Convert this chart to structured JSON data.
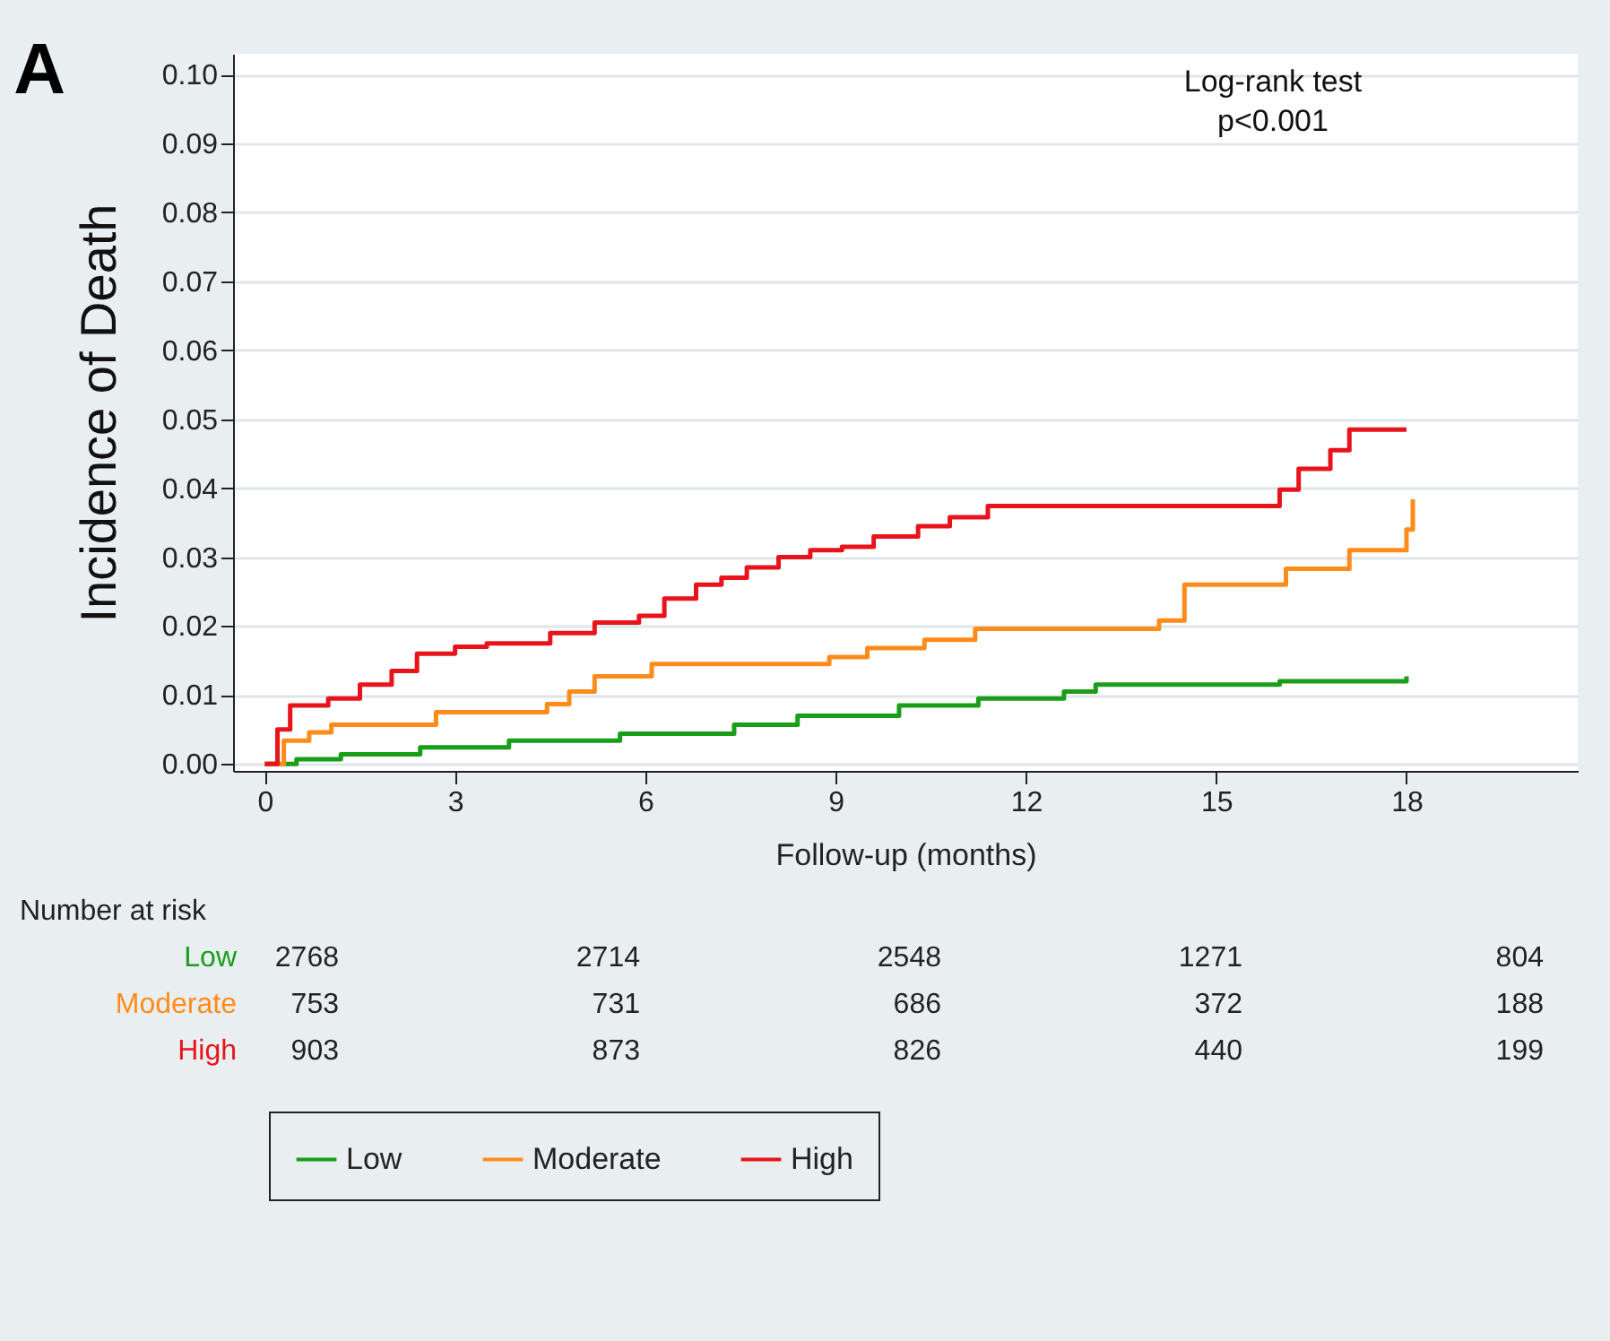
{
  "chart_data": {
    "type": "step",
    "xlabel": "Follow-up (months)",
    "ylabel": "Incidence of Death",
    "xlim": [
      -0.5,
      20.7
    ],
    "ylim": [
      -0.001,
      0.103
    ],
    "xticks": [
      0,
      3,
      6,
      9,
      12,
      15,
      18
    ],
    "yticks": [
      {
        "value": 0,
        "label": "0.00"
      },
      {
        "value": 0.01,
        "label": "0.01"
      },
      {
        "value": 0.02,
        "label": "0.02"
      },
      {
        "value": 0.03,
        "label": "0.03"
      },
      {
        "value": 0.04,
        "label": "0.04"
      },
      {
        "value": 0.05,
        "label": "0.05"
      },
      {
        "value": 0.06,
        "label": "0.06"
      },
      {
        "value": 0.07,
        "label": "0.07"
      },
      {
        "value": 0.08,
        "label": "0.08"
      },
      {
        "value": 0.09,
        "label": "0.09"
      },
      {
        "value": 0.1,
        "label": "0.10"
      }
    ],
    "grid": "y",
    "legend": "bottom",
    "series": [
      {
        "name": "Low",
        "color": "#1a9e1a",
        "x": [
          0,
          0.5,
          1.2,
          2.45,
          3.85,
          5.6,
          7.4,
          8.4,
          10,
          11.25,
          12.6,
          13.1,
          16,
          18
        ],
        "values": [
          0,
          0.0007,
          0.0014,
          0.0024,
          0.0034,
          0.0044,
          0.0057,
          0.007,
          0.0085,
          0.0095,
          0.0105,
          0.0115,
          0.012,
          0.0127
        ]
      },
      {
        "name": "Moderate",
        "color": "#ff8c1a",
        "x": [
          0,
          0.3,
          0.7,
          1.05,
          2.7,
          4.45,
          4.8,
          5.2,
          6.1,
          8.9,
          9.5,
          10.4,
          11.2,
          14.1,
          14.5,
          16.1,
          17.1,
          18,
          18.1
        ],
        "values": [
          0,
          0.0034,
          0.0046,
          0.0057,
          0.0075,
          0.0087,
          0.0105,
          0.0127,
          0.0145,
          0.0155,
          0.0168,
          0.018,
          0.0196,
          0.0208,
          0.026,
          0.0283,
          0.031,
          0.034,
          0.0384
        ]
      },
      {
        "name": "High",
        "color": "#e8141c",
        "x": [
          0,
          0.2,
          0.4,
          1,
          1.5,
          2,
          2.4,
          3,
          3.5,
          4.5,
          5.2,
          5.9,
          6.3,
          6.8,
          7.2,
          7.6,
          8.1,
          8.6,
          9.1,
          9.6,
          10.3,
          10.8,
          11.4,
          16,
          16.3,
          16.8,
          17.1,
          18
        ],
        "values": [
          0,
          0.005,
          0.0085,
          0.0095,
          0.0115,
          0.0135,
          0.016,
          0.017,
          0.0175,
          0.019,
          0.0205,
          0.0215,
          0.024,
          0.026,
          0.027,
          0.0285,
          0.03,
          0.031,
          0.0315,
          0.033,
          0.0345,
          0.0358,
          0.0374,
          0.0398,
          0.0428,
          0.0455,
          0.0485,
          0.0485
        ]
      }
    ],
    "annotations": [
      "Log-rank test",
      "p<0.001",
      "Number at risk",
      "A",
      "2768",
      "2714",
      "2548",
      "1271",
      "804",
      "753",
      "731",
      "686",
      "372",
      "188",
      "903",
      "873",
      "826",
      "440",
      "199"
    ]
  }
}
